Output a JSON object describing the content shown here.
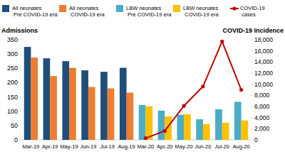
{
  "chart_data": {
    "type": "bar",
    "categories": [
      "Mar-19",
      "Apr-19",
      "May-19",
      "Jun-19",
      "Jul-19",
      "Aug-19",
      "Mar-20",
      "Apr-20",
      "May-20",
      "Jun-20",
      "Jul-20",
      "Aug-20"
    ],
    "y_label": "Admissions",
    "y2_label": "COVID-19 Incidence",
    "ylim": [
      0,
      350
    ],
    "yticks": [
      0,
      50,
      100,
      150,
      200,
      250,
      300,
      350
    ],
    "y2lim": [
      0,
      18000
    ],
    "y2ticks": [
      0,
      {
        "value": 2000,
        "label": "2,000"
      },
      {
        "value": 4000,
        "label": "4,000"
      },
      {
        "value": 6000,
        "label": "6,000"
      },
      {
        "value": 8000,
        "label": "8,000"
      },
      {
        "value": 10000,
        "label": "10,000"
      },
      {
        "value": 12000,
        "label": "12,000"
      },
      {
        "value": 14000,
        "label": "14,000"
      },
      {
        "value": 16000,
        "label": "16,000"
      },
      {
        "value": 18000,
        "label": "18,000"
      }
    ],
    "grid": false,
    "legend": "top",
    "series": [
      {
        "name": "All neonates Pre COVID-19 era",
        "type": "bar",
        "color": "#1f4e79",
        "values": [
          325,
          285,
          275,
          243,
          238,
          252,
          null,
          null,
          null,
          null,
          null,
          null
        ]
      },
      {
        "name": "All neonates COVID-19 era",
        "type": "bar",
        "color": "#ed7d31",
        "values": [
          288,
          223,
          252,
          185,
          180,
          165,
          null,
          null,
          null,
          null,
          null,
          null
        ]
      },
      {
        "name": "LBW neonates Pre COVID-19 era",
        "type": "bar",
        "color": "#4bacc6",
        "values": [
          null,
          null,
          null,
          null,
          null,
          null,
          122,
          102,
          88,
          72,
          107,
          133
        ]
      },
      {
        "name": "LBW neonates COVID-19 era",
        "type": "bar",
        "color": "#ffc000",
        "values": [
          null,
          null,
          null,
          null,
          null,
          null,
          117,
          82,
          90,
          55,
          60,
          68
        ]
      },
      {
        "name": "COVID-19 cases",
        "type": "line",
        "axis": "y2",
        "color": "#c00000",
        "marker": "circle",
        "values": [
          null,
          null,
          null,
          null,
          null,
          null,
          300,
          1600,
          6100,
          9600,
          17700,
          9000
        ]
      }
    ]
  }
}
